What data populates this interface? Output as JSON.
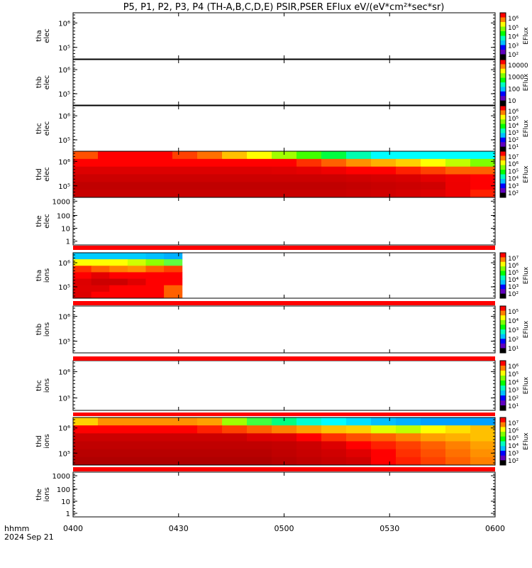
{
  "title": "P5, P1, P2, P3, P4 (TH-A,B,C,D,E) PSIR,PSER EFlux eV/(eV*cm²*sec*sr)",
  "time_axis": {
    "label_line1": "hhmm",
    "label_line2": "2024 Sep 21",
    "ticks": [
      "0400",
      "0430",
      "0500",
      "0530",
      "0600"
    ]
  },
  "colorbar_unit": "EFlux",
  "chart_data": [
    {
      "type": "heatmap",
      "probe": "tha",
      "species": "elec",
      "ylabel_line1": "tha",
      "ylabel_line2": "elec",
      "yticks": [
        "10⁵",
        "10⁶"
      ],
      "log": true,
      "colorbar_ticks": [
        "10⁶",
        "10⁵",
        "10⁴",
        "10³",
        "10²"
      ],
      "data": "none"
    },
    {
      "type": "heatmap",
      "probe": "thb",
      "species": "elec",
      "ylabel_line1": "thb",
      "ylabel_line2": "elec",
      "yticks": [
        "10⁵",
        "10⁶"
      ],
      "log": true,
      "colorbar_ticks": [
        "10000",
        "1000",
        "100",
        "10"
      ],
      "data": "none"
    },
    {
      "type": "heatmap",
      "probe": "thc",
      "species": "elec",
      "ylabel_line1": "thc",
      "ylabel_line2": "elec",
      "yticks": [
        "10⁵",
        "10⁶"
      ],
      "log": true,
      "colorbar_ticks": [
        "10⁶",
        "10⁵",
        "10⁴",
        "10³",
        "10²",
        "10¹"
      ],
      "data": "none"
    },
    {
      "type": "heatmap",
      "probe": "thd",
      "species": "elec",
      "ylabel_line1": "thd",
      "ylabel_line2": "elec",
      "yticks": [
        "10⁵",
        "10⁶"
      ],
      "log": true,
      "colorbar_ticks": [
        "10⁷",
        "10⁶",
        "10⁵",
        "10⁴",
        "10³",
        "10²"
      ],
      "time_range": [
        "0400",
        "0600"
      ],
      "n_time_bins": 17,
      "n_energy_bins": 6,
      "color_rows_top_to_bottom": [
        [
          "#ff5000",
          "#ff0000",
          "#ff0000",
          "#ff0000",
          "#ff4000",
          "#ff7000",
          "#ffc000",
          "#ffff00",
          "#a0ff00",
          "#40ff00",
          "#00ff40",
          "#00ffb0",
          "#00ffff",
          "#00ffff",
          "#00ffff",
          "#00ffff",
          "#00ffff"
        ],
        [
          "#ff0000",
          "#ff0000",
          "#ff0000",
          "#ff0000",
          "#ff0000",
          "#ff0000",
          "#ff0000",
          "#ff0000",
          "#ff0000",
          "#ff3000",
          "#ff6000",
          "#ff9000",
          "#ffb000",
          "#ffd000",
          "#ffff00",
          "#c0ff00",
          "#80ff00"
        ],
        [
          "#dd0000",
          "#dd0000",
          "#dd0000",
          "#dd0000",
          "#dd0000",
          "#dd0000",
          "#dd0000",
          "#dd0000",
          "#e00000",
          "#e60000",
          "#f00000",
          "#ff0000",
          "#ff0000",
          "#ff2000",
          "#ff4000",
          "#ff6000",
          "#ff6000"
        ],
        [
          "#cc0000",
          "#cc0000",
          "#cc0000",
          "#cc0000",
          "#cc0000",
          "#cc0000",
          "#cc0000",
          "#cc0000",
          "#cc0000",
          "#cc0000",
          "#cc0000",
          "#d00000",
          "#d40000",
          "#d80000",
          "#e40000",
          "#f00000",
          "#ff0000"
        ],
        [
          "#c00000",
          "#c00000",
          "#c00000",
          "#c00000",
          "#c00000",
          "#c00000",
          "#c00000",
          "#c00000",
          "#c00000",
          "#c00000",
          "#c00000",
          "#c40000",
          "#c80000",
          "#cc0000",
          "#d00000",
          "#ee0000",
          "#ff0000"
        ],
        [
          "#c80000",
          "#c80000",
          "#c80000",
          "#c80000",
          "#c80000",
          "#c80000",
          "#c80000",
          "#c80000",
          "#c80000",
          "#c80000",
          "#c80000",
          "#cc0000",
          "#d00000",
          "#d60000",
          "#dd0000",
          "#ee0000",
          "#ff2000"
        ]
      ]
    },
    {
      "type": "heatmap",
      "probe": "the",
      "species": "elec",
      "ylabel_line1": "the",
      "ylabel_line2": "elec",
      "yticks": [
        "1",
        "10",
        "100",
        "1000"
      ],
      "log": true,
      "data": "none"
    },
    {
      "type": "heatmap",
      "probe": "tha",
      "species": "ions",
      "ylabel_line1": "tha",
      "ylabel_line2": "ions",
      "yticks": [
        "10⁵",
        "10⁶"
      ],
      "log": true,
      "colorbar_ticks": [
        "10⁷",
        "10⁶",
        "10⁵",
        "10⁴",
        "10³",
        "10²"
      ],
      "time_range": [
        "0400",
        "0431"
      ],
      "n_time_bins": 6,
      "n_energy_bins": 7,
      "color_rows_top_to_bottom": [
        [
          "#00ccff",
          "#00ccff",
          "#00ccff",
          "#00ccff",
          "#00c0ff",
          "#00b0ff"
        ],
        [
          "#ffff00",
          "#ffff00",
          "#ffff00",
          "#d0ff00",
          "#90ff00",
          "#60ff40"
        ],
        [
          "#ff3000",
          "#ff6000",
          "#ff8000",
          "#ff9000",
          "#ff6000",
          "#ff4000"
        ],
        [
          "#ff0000",
          "#e40000",
          "#ff0000",
          "#ff0000",
          "#ff0000",
          "#ff0000"
        ],
        [
          "#dd0000",
          "#cc0000",
          "#cc0000",
          "#e00000",
          "#ff0000",
          "#ff0000"
        ],
        [
          "#e00000",
          "#e00000",
          "#ff0000",
          "#ff0000",
          "#ff0000",
          "#ff6000"
        ],
        [
          "#dd0000",
          "#ff0000",
          "#ff0000",
          "#ff0000",
          "#ff0000",
          "#ff6000"
        ]
      ]
    },
    {
      "type": "heatmap",
      "probe": "thb",
      "species": "ions",
      "ylabel_line1": "thb",
      "ylabel_line2": "ions",
      "yticks": [
        "10⁵",
        "10⁶"
      ],
      "log": true,
      "colorbar_ticks": [
        "10⁵",
        "10⁴",
        "10³",
        "10²",
        "10¹"
      ],
      "data": "none"
    },
    {
      "type": "heatmap",
      "probe": "thc",
      "species": "ions",
      "ylabel_line1": "thc",
      "ylabel_line2": "ions",
      "yticks": [
        "10⁵",
        "10⁶"
      ],
      "log": true,
      "colorbar_ticks": [
        "10⁶",
        "10⁵",
        "10⁴",
        "10³",
        "10²",
        "10¹"
      ],
      "data": "none"
    },
    {
      "type": "heatmap",
      "probe": "thd",
      "species": "ions",
      "ylabel_line1": "thd",
      "ylabel_line2": "ions",
      "yticks": [
        "10⁵",
        "10⁶"
      ],
      "log": true,
      "colorbar_ticks": [
        "10⁷",
        "10⁶",
        "10⁵",
        "10⁴",
        "10³",
        "10²"
      ],
      "time_range": [
        "0400",
        "0600"
      ],
      "n_time_bins": 17,
      "n_energy_bins": 6,
      "color_rows_top_to_bottom": [
        [
          "#ffd000",
          "#ff9000",
          "#ff9000",
          "#ff9000",
          "#ff9000",
          "#ffa000",
          "#a0ff00",
          "#40ff40",
          "#00ff80",
          "#00ffd0",
          "#00ffff",
          "#00e0ff",
          "#00c0ff",
          "#00b0ff",
          "#00a0ff",
          "#00a0ff",
          "#00a0ff"
        ],
        [
          "#ff0000",
          "#ff0000",
          "#ff0000",
          "#ff0000",
          "#ff0000",
          "#ff2000",
          "#ff4000",
          "#ff6000",
          "#ff8000",
          "#ffa000",
          "#ffc000",
          "#ffd000",
          "#e0ff00",
          "#c0ff00",
          "#ffff00",
          "#ffe000",
          "#ffc000"
        ],
        [
          "#cc0000",
          "#cc0000",
          "#cc0000",
          "#cc0000",
          "#cc0000",
          "#cc0000",
          "#cc0000",
          "#dd0000",
          "#e00000",
          "#ff0000",
          "#ff3000",
          "#ff5000",
          "#ff6000",
          "#ff8000",
          "#ffa000",
          "#ffb000",
          "#ffc000"
        ],
        [
          "#c00000",
          "#c00000",
          "#c00000",
          "#c00000",
          "#c00000",
          "#c00000",
          "#c00000",
          "#c00000",
          "#c40000",
          "#cc0000",
          "#dd0000",
          "#ff0000",
          "#ff2000",
          "#ff4000",
          "#ff6000",
          "#ff8000",
          "#ffa000"
        ],
        [
          "#b80000",
          "#b80000",
          "#b80000",
          "#b80000",
          "#b80000",
          "#b80000",
          "#b80000",
          "#b80000",
          "#c00000",
          "#c80000",
          "#d00000",
          "#e00000",
          "#ff0000",
          "#ff3000",
          "#ff5000",
          "#ff7000",
          "#ff9000"
        ],
        [
          "#b00000",
          "#b00000",
          "#b00000",
          "#b00000",
          "#b00000",
          "#b00000",
          "#b00000",
          "#b00000",
          "#b80000",
          "#c00000",
          "#c80000",
          "#d00000",
          "#ff0000",
          "#ff2000",
          "#ff4000",
          "#ff6000",
          "#ff8000"
        ]
      ]
    },
    {
      "type": "heatmap",
      "probe": "the",
      "species": "ions",
      "ylabel_line1": "the",
      "ylabel_line2": "ions",
      "yticks": [
        "1",
        "10",
        "100",
        "1000"
      ],
      "log": true,
      "data": "none"
    }
  ]
}
